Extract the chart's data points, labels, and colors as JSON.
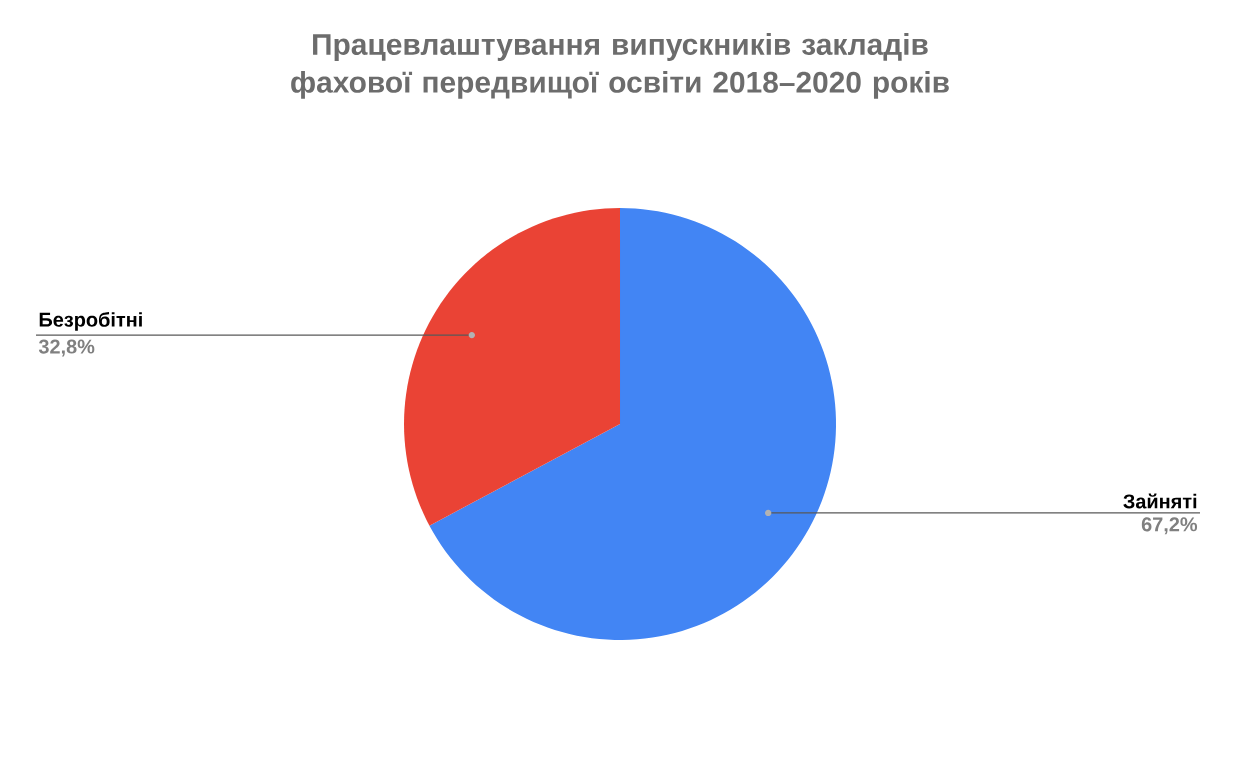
{
  "chart_data": {
    "type": "pie",
    "title": "Працевлаштування випускників закладів фахової передвищої освіти 2018–2020 років",
    "categories": [
      "Зайняті",
      "Безробітні"
    ],
    "values": [
      67.2,
      32.8
    ],
    "colors": [
      "#4285f4",
      "#ea4335"
    ],
    "value_labels": [
      "67,2%",
      "32,8%"
    ]
  }
}
